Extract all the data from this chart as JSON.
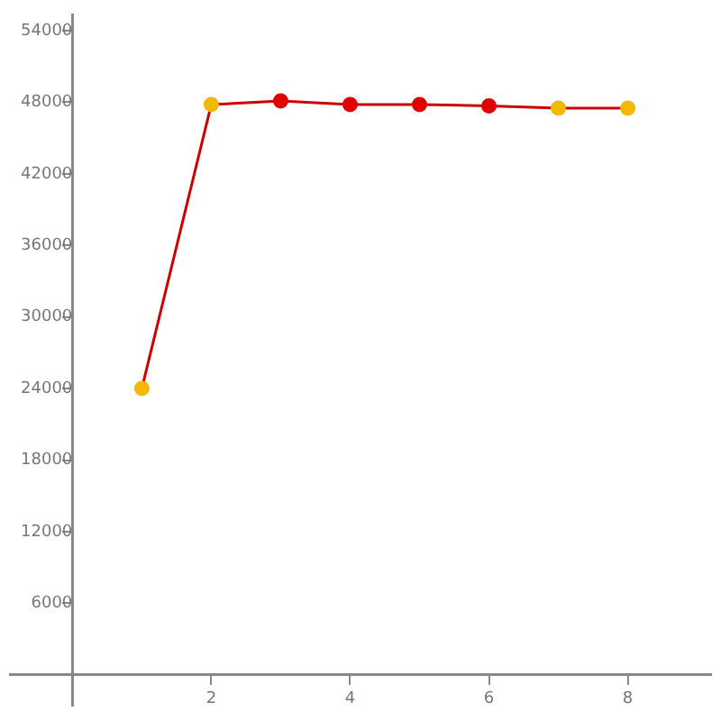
{
  "chart_data": {
    "type": "line",
    "x": [
      1,
      2,
      3,
      4,
      5,
      6,
      7,
      8
    ],
    "series": [
      {
        "color": "#cc0000",
        "colors": [
          "#f5b800",
          "#f5b800",
          "#e00000",
          "#e00000",
          "#e00000",
          "#e00000",
          "#f5b800",
          "#f5b800"
        ],
        "values": [
          24000,
          47800,
          48100,
          47800,
          47800,
          47700,
          47500,
          47500
        ]
      }
    ],
    "xlim": [
      -0.9,
      9.2
    ],
    "xticks": [
      2,
      4,
      6,
      8
    ],
    "ylim": [
      -2600,
      55300
    ],
    "yticks": [
      6000,
      12000,
      18000,
      24000,
      30000,
      36000,
      42000,
      48000,
      54000
    ],
    "grid": false,
    "legend": false,
    "marker": "circle",
    "line_style": "solid"
  }
}
